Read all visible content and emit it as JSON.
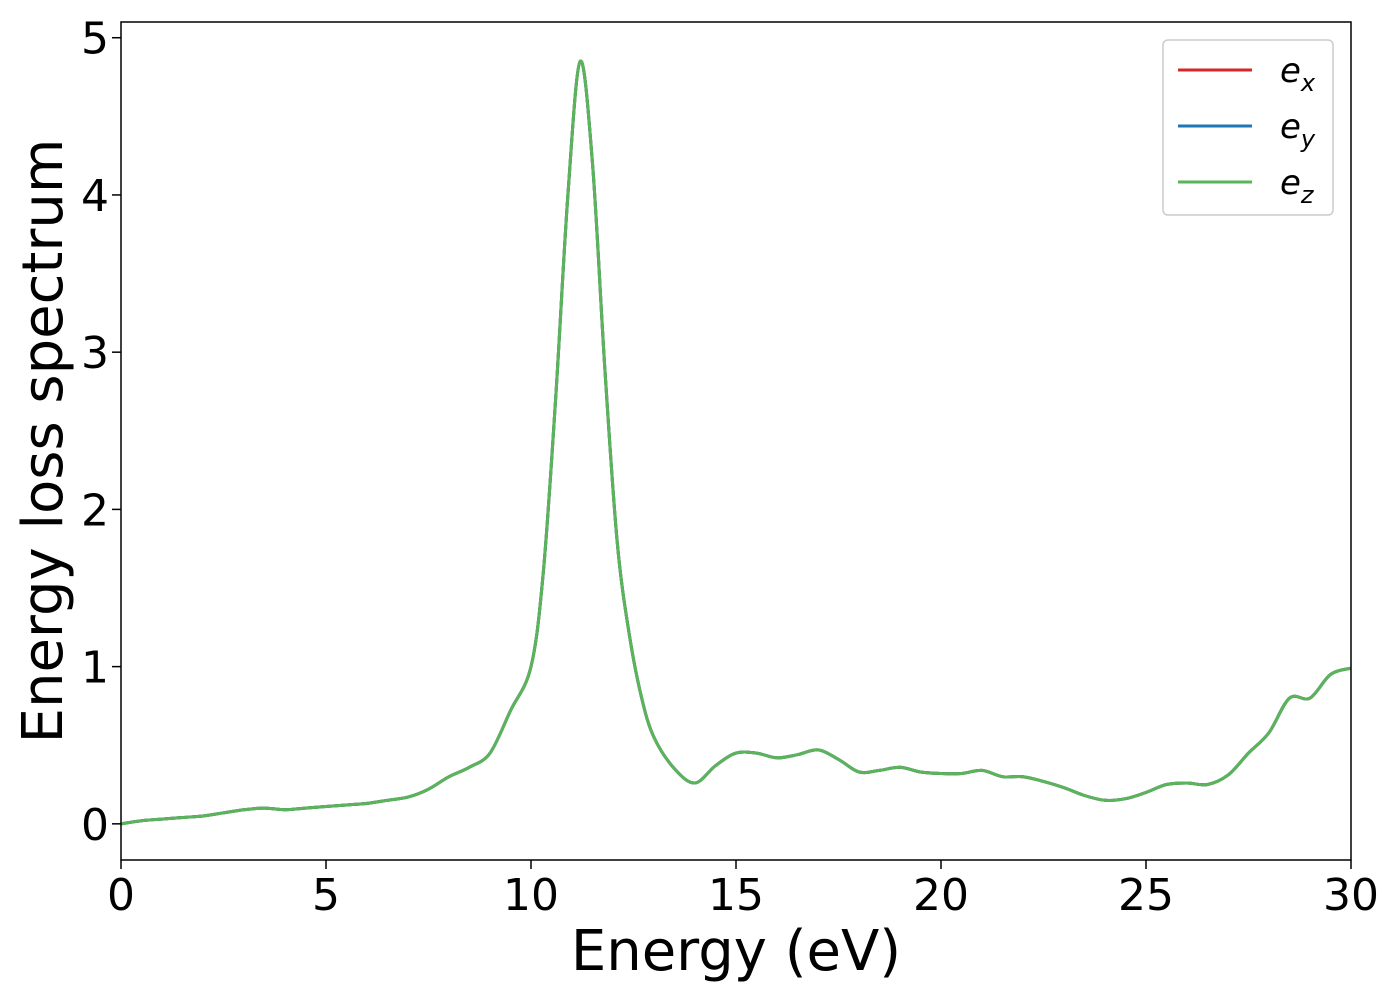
{
  "chart_data": {
    "type": "line",
    "title": "",
    "xlabel": "Energy (eV)",
    "ylabel": "Energy loss spectrum",
    "xlim": [
      0,
      30
    ],
    "ylim": [
      -0.23,
      5.1
    ],
    "xticks": [
      0,
      5,
      10,
      15,
      20,
      25,
      30
    ],
    "yticks": [
      0,
      1,
      2,
      3,
      4,
      5
    ],
    "grid": false,
    "legend": {
      "position": "top-right"
    },
    "colors": {
      "e_x": "#d62728",
      "e_y": "#1f77b4",
      "e_z": "#5ab45a"
    },
    "x": [
      0,
      0.5,
      1,
      1.5,
      2,
      2.5,
      3,
      3.5,
      4,
      4.5,
      5,
      5.5,
      6,
      6.5,
      7,
      7.5,
      8,
      8.5,
      9,
      9.5,
      10,
      10.3,
      10.6,
      10.9,
      11.2,
      11.5,
      11.8,
      12.1,
      12.4,
      12.7,
      13,
      13.5,
      14,
      14.5,
      15,
      15.5,
      16,
      16.5,
      17,
      17.5,
      18,
      18.5,
      19,
      19.5,
      20,
      20.5,
      21,
      21.5,
      22,
      22.5,
      23,
      23.5,
      24,
      24.5,
      25,
      25.5,
      26,
      26.5,
      27,
      27.5,
      28,
      28.5,
      29,
      29.5,
      30
    ],
    "series": [
      {
        "name": "e_x",
        "label_base": "e",
        "label_sub": "x",
        "color": "#d62728",
        "values": [
          0.0,
          0.02,
          0.03,
          0.04,
          0.05,
          0.07,
          0.09,
          0.1,
          0.09,
          0.1,
          0.11,
          0.12,
          0.13,
          0.15,
          0.17,
          0.22,
          0.3,
          0.36,
          0.45,
          0.72,
          1.0,
          1.6,
          2.7,
          4.0,
          4.85,
          4.2,
          2.9,
          1.8,
          1.2,
          0.8,
          0.55,
          0.35,
          0.26,
          0.37,
          0.45,
          0.45,
          0.42,
          0.44,
          0.47,
          0.41,
          0.33,
          0.34,
          0.36,
          0.33,
          0.32,
          0.32,
          0.34,
          0.3,
          0.3,
          0.27,
          0.23,
          0.18,
          0.15,
          0.16,
          0.2,
          0.25,
          0.26,
          0.25,
          0.31,
          0.45,
          0.58,
          0.8,
          0.8,
          0.95,
          0.99
        ]
      },
      {
        "name": "e_y",
        "label_base": "e",
        "label_sub": "y",
        "color": "#1f77b4",
        "values": [
          0.0,
          0.02,
          0.03,
          0.04,
          0.05,
          0.07,
          0.09,
          0.1,
          0.09,
          0.1,
          0.11,
          0.12,
          0.13,
          0.15,
          0.17,
          0.22,
          0.3,
          0.36,
          0.45,
          0.72,
          1.0,
          1.6,
          2.7,
          4.0,
          4.85,
          4.2,
          2.9,
          1.8,
          1.2,
          0.8,
          0.55,
          0.35,
          0.26,
          0.37,
          0.45,
          0.45,
          0.42,
          0.44,
          0.47,
          0.41,
          0.33,
          0.34,
          0.36,
          0.33,
          0.32,
          0.32,
          0.34,
          0.3,
          0.3,
          0.27,
          0.23,
          0.18,
          0.15,
          0.16,
          0.2,
          0.25,
          0.26,
          0.25,
          0.31,
          0.45,
          0.58,
          0.8,
          0.8,
          0.95,
          0.99
        ]
      },
      {
        "name": "e_z",
        "label_base": "e",
        "label_sub": "z",
        "color": "#5ab45a",
        "values": [
          0.0,
          0.02,
          0.03,
          0.04,
          0.05,
          0.07,
          0.09,
          0.1,
          0.09,
          0.1,
          0.11,
          0.12,
          0.13,
          0.15,
          0.17,
          0.22,
          0.3,
          0.36,
          0.45,
          0.72,
          1.0,
          1.6,
          2.7,
          4.0,
          4.85,
          4.2,
          2.9,
          1.8,
          1.2,
          0.8,
          0.55,
          0.35,
          0.26,
          0.37,
          0.45,
          0.45,
          0.42,
          0.44,
          0.47,
          0.41,
          0.33,
          0.34,
          0.36,
          0.33,
          0.32,
          0.32,
          0.34,
          0.3,
          0.3,
          0.27,
          0.23,
          0.18,
          0.15,
          0.16,
          0.2,
          0.25,
          0.26,
          0.25,
          0.31,
          0.45,
          0.58,
          0.8,
          0.8,
          0.95,
          0.99
        ]
      }
    ]
  }
}
